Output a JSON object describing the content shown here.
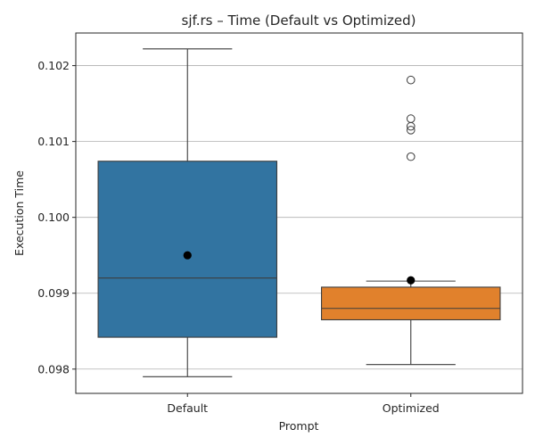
{
  "chart_data": {
    "type": "box",
    "title": "sjf.rs – Time (Default vs Optimized)",
    "xlabel": "Prompt",
    "ylabel": "Execution Time",
    "categories": [
      "Default",
      "Optimized"
    ],
    "ylim": [
      0.09768,
      0.10243
    ],
    "yticks": [
      "0.098",
      "0.099",
      "0.100",
      "0.101",
      "0.102"
    ],
    "ytick_values": [
      0.098,
      0.099,
      0.1,
      0.101,
      0.102
    ],
    "grid": "y",
    "series": [
      {
        "category": "Default",
        "color": "#3274a1",
        "whisker_low": 0.0979,
        "q1": 0.09842,
        "median": 0.0992,
        "q3": 0.10074,
        "whisker_high": 0.10222,
        "mean": 0.0995,
        "outliers": []
      },
      {
        "category": "Optimized",
        "color": "#e1812c",
        "whisker_low": 0.09806,
        "q1": 0.09865,
        "median": 0.0988,
        "q3": 0.09908,
        "whisker_high": 0.09916,
        "mean": 0.09917,
        "outliers": [
          0.10181,
          0.1013,
          0.1012,
          0.10115,
          0.1008
        ]
      }
    ],
    "colors": {
      "frame": "#262626",
      "whisker": "#3d3d3d",
      "grid": "#b0b0b0",
      "mean_marker": "#000000"
    }
  }
}
